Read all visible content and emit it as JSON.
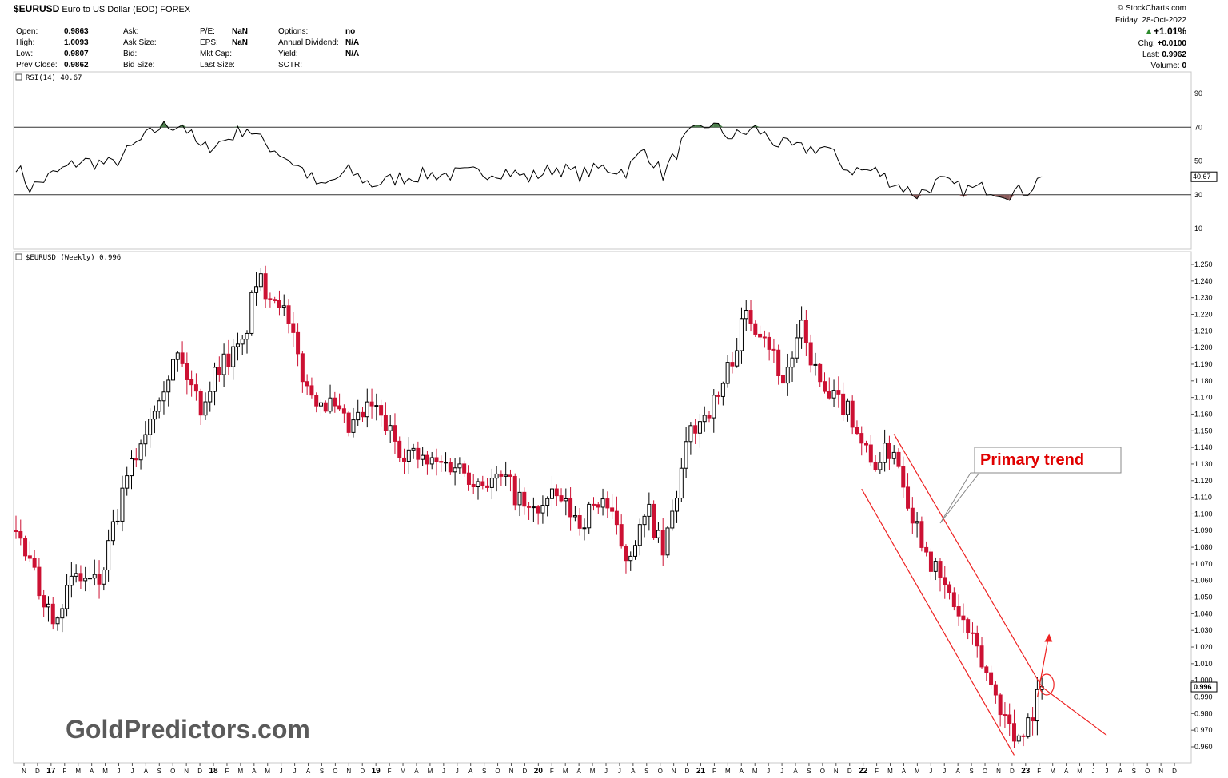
{
  "header": {
    "symbol": "$EURUSD",
    "description": "Euro to US Dollar (EOD)",
    "exchange": "FOREX",
    "day": "Friday",
    "date": "28-Oct-2022",
    "watermark": "© StockCharts.com",
    "change_pct": "+1.01%",
    "chg_label": "Chg:",
    "chg_value": "+0.0100",
    "last_label": "Last:",
    "last_value": "0.9962",
    "volume_label": "Volume:",
    "volume_value": "0",
    "col1": [
      [
        "Open:",
        "0.9863"
      ],
      [
        "High:",
        "1.0093"
      ],
      [
        "Low:",
        "0.9807"
      ],
      [
        "Prev Close:",
        "0.9862"
      ]
    ],
    "col2": [
      [
        "Ask:",
        ""
      ],
      [
        "Ask Size:",
        ""
      ],
      [
        "Bid:",
        ""
      ],
      [
        "Bid Size:",
        ""
      ]
    ],
    "col3": [
      [
        "P/E:",
        "NaN"
      ],
      [
        "EPS:",
        "NaN"
      ],
      [
        "Mkt Cap:",
        ""
      ],
      [
        "Last Size:",
        ""
      ]
    ],
    "col4": [
      [
        "Options:",
        "no"
      ],
      [
        "Annual Dividend:",
        "N/A"
      ],
      [
        "Yield:",
        "N/A"
      ],
      [
        "SCTR:",
        ""
      ]
    ]
  },
  "rsi_panel": {
    "label": "RSI(14) 40.67",
    "current": "40.67",
    "ticks": [
      "90",
      "70",
      "50",
      "30",
      "10"
    ],
    "overbought_color": "#4a7d4a",
    "oversold_color": "#8a5a5a"
  },
  "price_panel": {
    "label": "$EURUSD (Weekly) 0.996",
    "current": "0.996",
    "up_color": "#000000",
    "down_color": "#cc1133",
    "annotation": "Primary trend",
    "annotation_color": "#e00000",
    "branding": "GoldPredictors.com"
  },
  "chart_data": {
    "type": "candlestick",
    "title": "$EURUSD (Weekly)",
    "y_ticks": [
      "1.250",
      "1.240",
      "1.230",
      "1.220",
      "1.210",
      "1.200",
      "1.190",
      "1.180",
      "1.170",
      "1.160",
      "1.150",
      "1.140",
      "1.130",
      "1.120",
      "1.110",
      "1.100",
      "1.090",
      "1.080",
      "1.070",
      "1.060",
      "1.050",
      "1.040",
      "1.030",
      "1.020",
      "1.010",
      "1.000",
      "0.990",
      "0.980",
      "0.970",
      "0.960"
    ],
    "ylim": [
      0.954,
      1.254
    ],
    "x_ticks": [
      "N",
      "D",
      "17",
      "F",
      "M",
      "A",
      "M",
      "J",
      "J",
      "A",
      "S",
      "O",
      "N",
      "D",
      "18",
      "F",
      "M",
      "A",
      "M",
      "J",
      "J",
      "A",
      "S",
      "O",
      "N",
      "D",
      "19",
      "F",
      "M",
      "A",
      "M",
      "J",
      "J",
      "A",
      "S",
      "O",
      "N",
      "D",
      "20",
      "F",
      "M",
      "A",
      "M",
      "J",
      "J",
      "A",
      "S",
      "O",
      "N",
      "D",
      "21",
      "F",
      "M",
      "A",
      "M",
      "J",
      "J",
      "A",
      "S",
      "O",
      "N",
      "D",
      "22",
      "F",
      "M",
      "A",
      "M",
      "J",
      "J",
      "A",
      "S",
      "O",
      "N",
      "D",
      "23",
      "F",
      "M",
      "A",
      "M",
      "J",
      "J",
      "A",
      "S",
      "O",
      "N",
      "D"
    ],
    "close_path": [
      [
        0,
        1.09
      ],
      [
        5,
        1.055
      ],
      [
        8,
        1.04
      ],
      [
        13,
        1.062
      ],
      [
        18,
        1.058
      ],
      [
        24,
        1.12
      ],
      [
        31,
        1.175
      ],
      [
        35,
        1.195
      ],
      [
        40,
        1.165
      ],
      [
        44,
        1.19
      ],
      [
        49,
        1.2
      ],
      [
        52,
        1.24
      ],
      [
        57,
        1.23
      ],
      [
        63,
        1.175
      ],
      [
        68,
        1.165
      ],
      [
        72,
        1.15
      ],
      [
        77,
        1.165
      ],
      [
        83,
        1.14
      ],
      [
        89,
        1.13
      ],
      [
        95,
        1.13
      ],
      [
        100,
        1.12
      ],
      [
        106,
        1.12
      ],
      [
        111,
        1.1
      ],
      [
        117,
        1.11
      ],
      [
        122,
        1.095
      ],
      [
        127,
        1.11
      ],
      [
        132,
        1.075
      ],
      [
        137,
        1.1
      ],
      [
        140,
        1.075
      ],
      [
        146,
        1.15
      ],
      [
        152,
        1.17
      ],
      [
        158,
        1.22
      ],
      [
        162,
        1.21
      ],
      [
        166,
        1.18
      ],
      [
        170,
        1.21
      ],
      [
        175,
        1.17
      ],
      [
        180,
        1.165
      ],
      [
        185,
        1.13
      ],
      [
        190,
        1.14
      ],
      [
        194,
        1.1
      ],
      [
        199,
        1.065
      ],
      [
        204,
        1.04
      ],
      [
        209,
        1.01
      ],
      [
        213,
        0.985
      ],
      [
        216,
        0.965
      ],
      [
        219,
        0.975
      ],
      [
        222,
        0.996
      ]
    ],
    "rsi_path": [
      [
        0,
        48
      ],
      [
        3,
        34
      ],
      [
        8,
        42
      ],
      [
        14,
        50
      ],
      [
        21,
        48
      ],
      [
        26,
        60
      ],
      [
        31,
        70
      ],
      [
        36,
        72
      ],
      [
        40,
        57
      ],
      [
        45,
        62
      ],
      [
        50,
        70
      ],
      [
        53,
        62
      ],
      [
        57,
        55
      ],
      [
        62,
        45
      ],
      [
        66,
        34
      ],
      [
        72,
        44
      ],
      [
        77,
        36
      ],
      [
        83,
        40
      ],
      [
        89,
        42
      ],
      [
        94,
        42
      ],
      [
        100,
        43
      ],
      [
        106,
        44
      ],
      [
        111,
        40
      ],
      [
        117,
        46
      ],
      [
        122,
        42
      ],
      [
        127,
        46
      ],
      [
        132,
        44
      ],
      [
        136,
        57
      ],
      [
        140,
        42
      ],
      [
        145,
        64
      ],
      [
        150,
        72
      ],
      [
        155,
        64
      ],
      [
        160,
        69
      ],
      [
        165,
        60
      ],
      [
        170,
        57
      ],
      [
        175,
        58
      ],
      [
        180,
        45
      ],
      [
        186,
        44
      ],
      [
        190,
        37
      ],
      [
        195,
        30
      ],
      [
        200,
        38
      ],
      [
        205,
        33
      ],
      [
        210,
        34
      ],
      [
        215,
        31
      ],
      [
        219,
        33
      ],
      [
        222,
        40.67
      ]
    ],
    "rsi_ylim": [
      0,
      100
    ],
    "trend_channel": {
      "upper": [
        [
          190,
          1.148
        ],
        [
          222,
          0.996
        ],
        [
          236,
          0.967
        ]
      ],
      "lower": [
        [
          183,
          1.115
        ],
        [
          216,
          0.955
        ]
      ],
      "breakout_arrow": [
        [
          220,
          0.99
        ],
        [
          221.5,
          1.027
        ]
      ]
    }
  }
}
